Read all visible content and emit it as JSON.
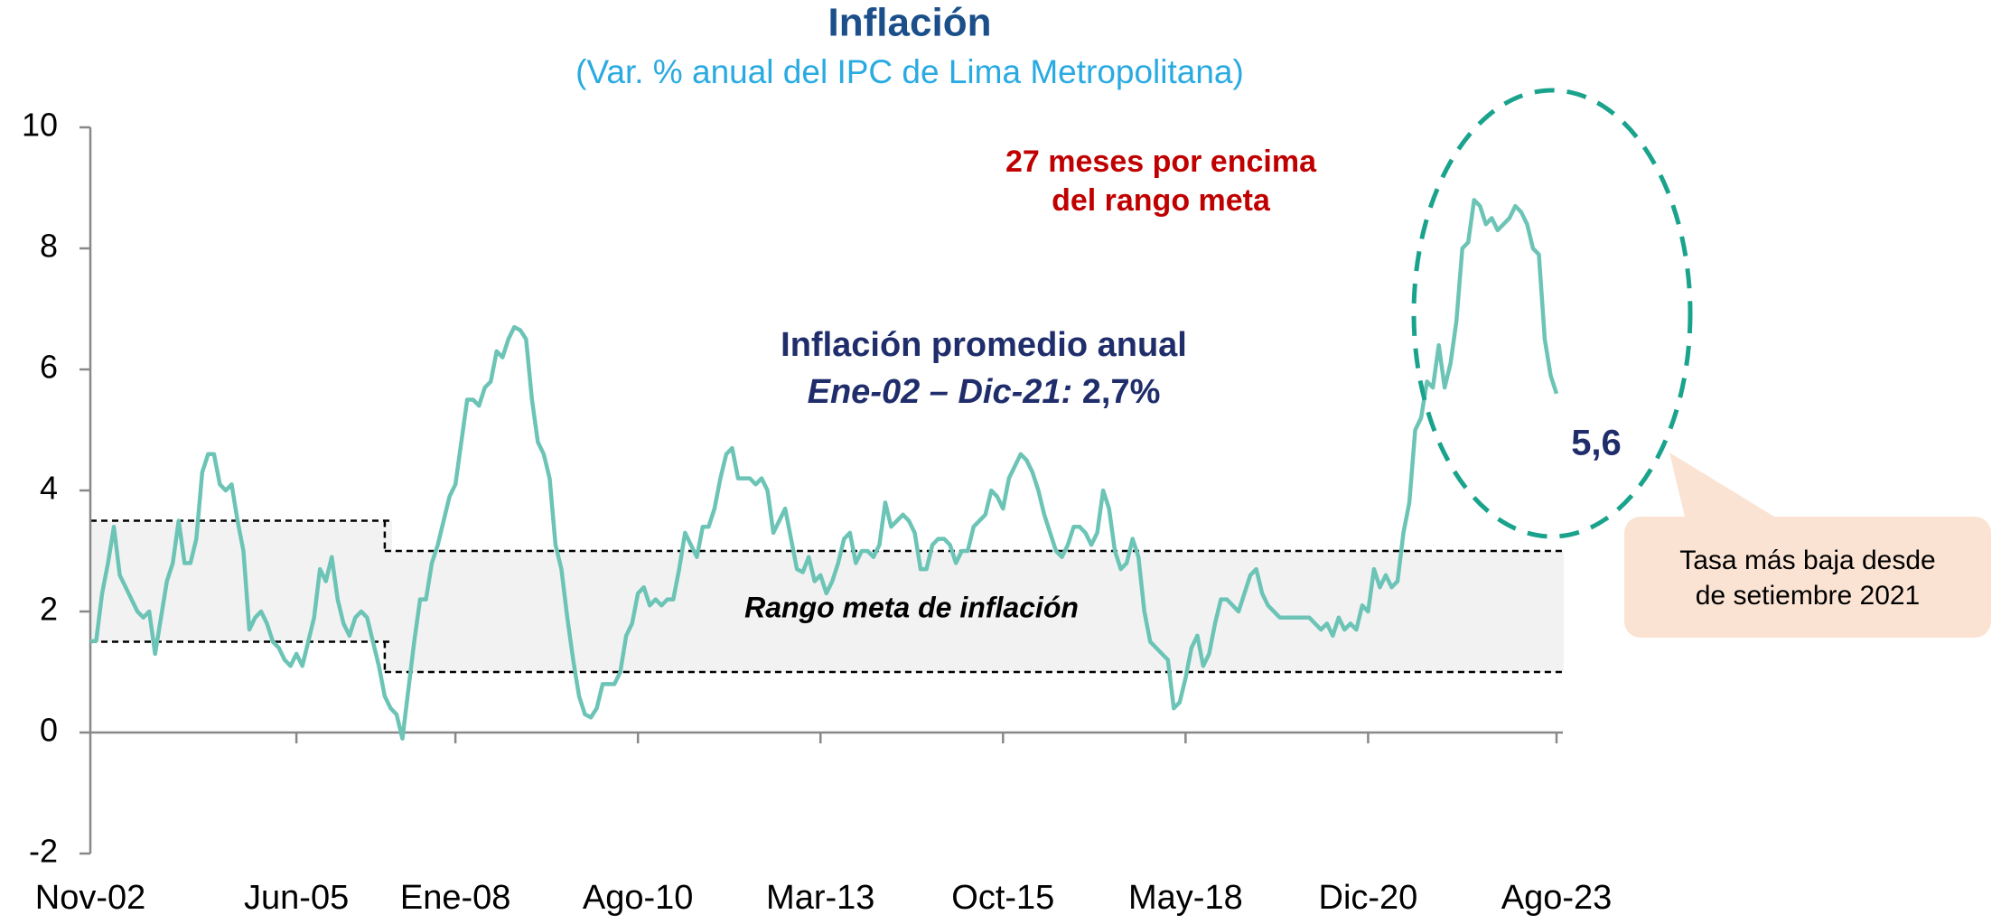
{
  "chart_data": {
    "type": "line",
    "title": "Inflación",
    "subtitle": "(Var. % anual del IPC de Lima Metropolitana)",
    "ylim": [
      -2,
      10
    ],
    "yticks": [
      -2,
      0,
      2,
      4,
      6,
      8,
      10
    ],
    "categories": [
      "Nov-02",
      null,
      null,
      null,
      null,
      null,
      null,
      null,
      null,
      null,
      null,
      null,
      null,
      null,
      null,
      null,
      null,
      null,
      null,
      null,
      null,
      null,
      null,
      null,
      null,
      null,
      null,
      null,
      null,
      null,
      null,
      null,
      null,
      null,
      null,
      "Jun-05",
      null,
      null,
      null,
      null,
      null,
      null,
      null,
      null,
      null,
      null,
      null,
      null,
      null,
      null,
      null,
      null,
      null,
      null,
      null,
      null,
      null,
      null,
      null,
      null,
      null,
      null,
      "Ene-08",
      null,
      null,
      null,
      null,
      null,
      null,
      null,
      null,
      null,
      null,
      null,
      null,
      null,
      null,
      null,
      null,
      null,
      null,
      null,
      null,
      null,
      null,
      null,
      null,
      null,
      null,
      null,
      null,
      null,
      null,
      "Ago-10",
      null,
      null,
      null,
      null,
      null,
      null,
      null,
      null,
      null,
      null,
      null,
      null,
      null,
      null,
      null,
      null,
      null,
      null,
      null,
      null,
      null,
      null,
      null,
      null,
      null,
      null,
      null,
      null,
      null,
      null,
      "Mar-13",
      null,
      null,
      null,
      null,
      null,
      null,
      null,
      null,
      null,
      null,
      null,
      null,
      null,
      null,
      null,
      null,
      null,
      null,
      null,
      null,
      null,
      null,
      null,
      null,
      null,
      null,
      null,
      null,
      null,
      null,
      "Oct-15",
      null,
      null,
      null,
      null,
      null,
      null,
      null,
      null,
      null,
      null,
      null,
      null,
      null,
      null,
      null,
      null,
      null,
      null,
      null,
      null,
      null,
      null,
      null,
      null,
      null,
      null,
      null,
      null,
      null,
      null,
      "May-18",
      null,
      null,
      null,
      null,
      null,
      null,
      null,
      null,
      null,
      null,
      null,
      null,
      null,
      null,
      null,
      null,
      null,
      null,
      null,
      null,
      null,
      null,
      null,
      null,
      null,
      null,
      null,
      null,
      null,
      null,
      "Dic-20",
      null,
      null,
      null,
      null,
      null,
      null,
      null,
      null,
      null,
      null,
      null,
      null,
      null,
      null,
      null,
      null,
      null,
      null,
      null,
      null,
      null,
      null,
      null,
      null,
      null,
      null,
      null,
      null,
      null,
      null,
      null,
      "Ago-23"
    ],
    "series": [
      {
        "color": "#6cc4b6",
        "values": [
          1.5,
          1.52,
          2.3,
          2.8,
          3.4,
          2.6,
          2.4,
          2.2,
          2.0,
          1.9,
          2.0,
          1.3,
          1.9,
          2.5,
          2.8,
          3.5,
          2.8,
          2.8,
          3.2,
          4.3,
          4.6,
          4.6,
          4.1,
          4.0,
          4.1,
          3.5,
          3.0,
          1.7,
          1.9,
          2.0,
          1.8,
          1.5,
          1.4,
          1.2,
          1.1,
          1.3,
          1.1,
          1.5,
          1.9,
          2.7,
          2.5,
          2.9,
          2.2,
          1.8,
          1.6,
          1.9,
          2.0,
          1.9,
          1.5,
          1.1,
          0.6,
          0.4,
          0.3,
          -0.1,
          0.7,
          1.5,
          2.2,
          2.2,
          2.8,
          3.1,
          3.5,
          3.9,
          4.1,
          4.8,
          5.5,
          5.5,
          5.4,
          5.7,
          5.8,
          6.3,
          6.2,
          6.5,
          6.7,
          6.65,
          6.5,
          5.5,
          4.8,
          4.6,
          4.2,
          3.1,
          2.7,
          1.9,
          1.2,
          0.6,
          0.3,
          0.25,
          0.4,
          0.8,
          0.8,
          0.8,
          1.0,
          1.6,
          1.8,
          2.3,
          2.4,
          2.1,
          2.2,
          2.1,
          2.2,
          2.2,
          2.7,
          3.3,
          3.1,
          2.9,
          3.4,
          3.4,
          3.7,
          4.2,
          4.6,
          4.7,
          4.2,
          4.2,
          4.2,
          4.1,
          4.2,
          4.0,
          3.3,
          3.5,
          3.7,
          3.2,
          2.7,
          2.65,
          2.9,
          2.5,
          2.6,
          2.3,
          2.5,
          2.8,
          3.2,
          3.3,
          2.8,
          3.0,
          3.0,
          2.9,
          3.1,
          3.8,
          3.4,
          3.5,
          3.6,
          3.5,
          3.3,
          2.7,
          2.7,
          3.1,
          3.2,
          3.2,
          3.1,
          2.8,
          3.0,
          3.0,
          3.4,
          3.5,
          3.6,
          4.0,
          3.9,
          3.7,
          4.2,
          4.4,
          4.6,
          4.5,
          4.3,
          4.0,
          3.6,
          3.3,
          3.0,
          2.9,
          3.1,
          3.4,
          3.4,
          3.3,
          3.1,
          3.3,
          4.0,
          3.7,
          3.0,
          2.7,
          2.8,
          3.2,
          2.9,
          2.0,
          1.5,
          1.4,
          1.3,
          1.2,
          0.4,
          0.5,
          0.9,
          1.4,
          1.6,
          1.1,
          1.3,
          1.8,
          2.2,
          2.2,
          2.1,
          2.0,
          2.3,
          2.6,
          2.7,
          2.3,
          2.1,
          2.0,
          1.9,
          1.9,
          1.9,
          1.9,
          1.9,
          1.9,
          1.8,
          1.7,
          1.8,
          1.6,
          1.9,
          1.7,
          1.8,
          1.7,
          2.1,
          2.0,
          2.7,
          2.4,
          2.6,
          2.4,
          2.5,
          3.3,
          3.8,
          5.0,
          5.2,
          5.8,
          5.7,
          6.4,
          5.7,
          6.1,
          6.8,
          8.0,
          8.1,
          8.8,
          8.7,
          8.4,
          8.5,
          8.3,
          8.4,
          8.5,
          8.7,
          8.6,
          8.4,
          8.0,
          7.9,
          6.5,
          5.9,
          5.6
        ]
      }
    ],
    "value_label": {
      "index": 249,
      "label": "5,6"
    },
    "target_ranges": [
      {
        "low": 1.5,
        "high": 3.5,
        "start": 0,
        "end": 50
      },
      {
        "low": 1,
        "high": 3,
        "start": 50,
        "end": 249
      }
    ],
    "target_label": "Rango meta de inflación",
    "annotation_red": [
      "27 meses por encima",
      "del rango meta"
    ],
    "average_title": "Inflación promedio anual",
    "average_period": "Ene-02 – Dic-21:",
    "average_value": " 2,7%",
    "callout": [
      "Tasa más baja desde",
      "de setiembre 2021"
    ]
  }
}
